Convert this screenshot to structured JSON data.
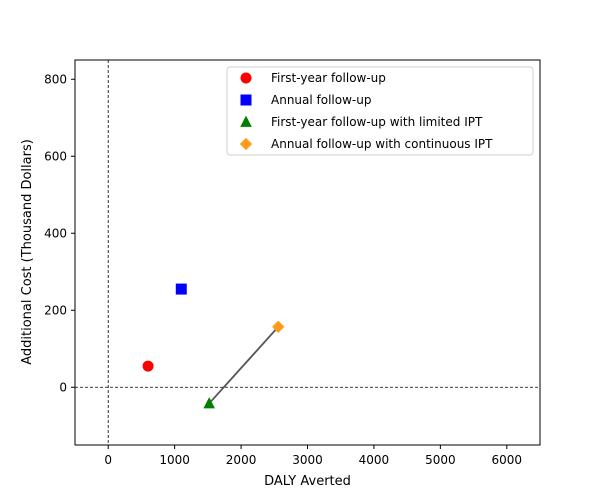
{
  "chart_data": {
    "type": "scatter",
    "xlabel": "DALY Averted",
    "ylabel": "Additional Cost (Thousand Dollars)",
    "xlim": [
      -500,
      6500
    ],
    "ylim": [
      -150,
      850
    ],
    "xticks": [
      0,
      1000,
      2000,
      3000,
      4000,
      5000,
      6000
    ],
    "xtick_labels": [
      "0",
      "1000",
      "2000",
      "3000",
      "4000",
      "5000",
      "6000"
    ],
    "yticks": [
      0,
      200,
      400,
      600,
      800
    ],
    "ytick_labels": [
      "0",
      "200",
      "400",
      "600",
      "800"
    ],
    "grid": false,
    "legend_position": "upper right",
    "reference_lines": {
      "vertical_x": 0,
      "horizontal_y": 0,
      "style": "dashed",
      "color": "#000000"
    },
    "series": [
      {
        "name": "First-year follow-up",
        "marker": "circle",
        "color": "#ff0000",
        "points": [
          {
            "x": 600,
            "y": 55
          }
        ]
      },
      {
        "name": "Annual follow-up",
        "marker": "square",
        "color": "#0000ff",
        "points": [
          {
            "x": 1100,
            "y": 255
          }
        ]
      },
      {
        "name": "First-year follow-up with limited IPT",
        "marker": "triangle",
        "color": "#007f00",
        "points": [
          {
            "x": 1520,
            "y": -42
          }
        ]
      },
      {
        "name": "Annual follow-up with continuous IPT",
        "marker": "diamond",
        "color": "#ff9a1a",
        "points": [
          {
            "x": 2560,
            "y": 157
          }
        ]
      }
    ],
    "connector_lines": [
      {
        "from": {
          "x": 1520,
          "y": -42
        },
        "to": {
          "x": 2560,
          "y": 157
        },
        "color": "#555555"
      }
    ]
  }
}
